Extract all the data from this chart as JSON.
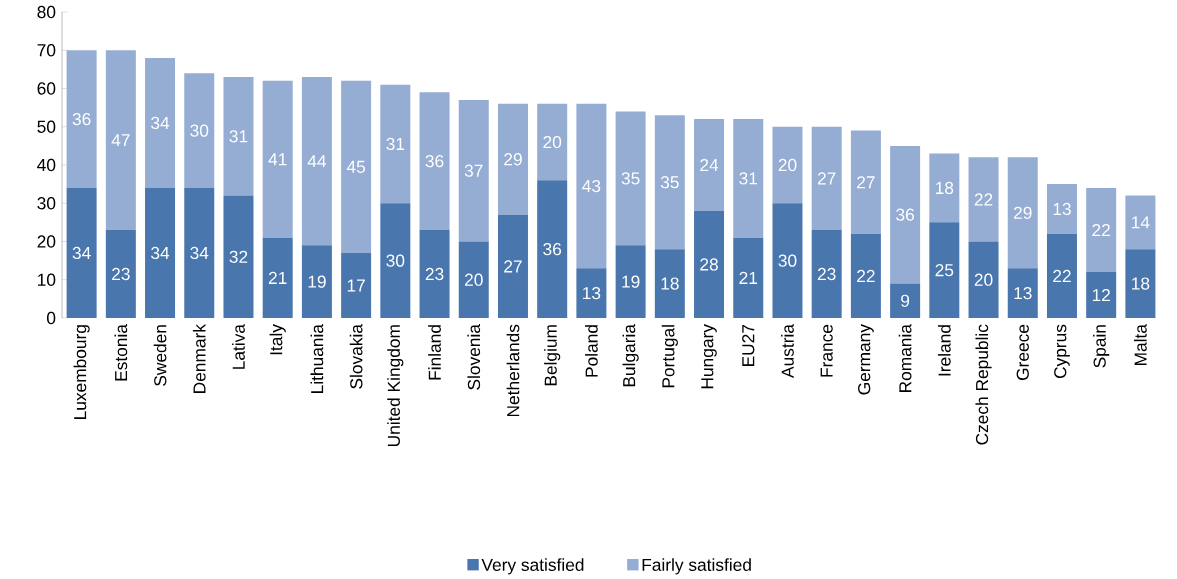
{
  "chart_data": {
    "type": "bar",
    "stacked": true,
    "data_labels": true,
    "legend": "bottom",
    "categories": [
      "Luxembourg",
      "Estonia",
      "Sweden",
      "Denmark",
      "Lativa",
      "Italy",
      "Lithuania",
      "Slovakia",
      "United Kingdom",
      "Finland",
      "Slovenia",
      "Netherlands",
      "Belgium",
      "Poland",
      "Bulgaria",
      "Portugal",
      "Hungary",
      "EU27",
      "Austria",
      "France",
      "Germany",
      "Romania",
      "Ireland",
      "Czech Republic",
      "Greece",
      "Cyprus",
      "Spain",
      "Malta"
    ],
    "series": [
      {
        "name": "Very satisfied",
        "color": "#4a76ae",
        "values": [
          34,
          23,
          34,
          34,
          32,
          21,
          19,
          17,
          30,
          23,
          20,
          27,
          36,
          13,
          19,
          18,
          28,
          21,
          30,
          23,
          22,
          9,
          25,
          20,
          13,
          22,
          12,
          18
        ]
      },
      {
        "name": "Fairly satisfied",
        "color": "#95acd3",
        "values": [
          36,
          47,
          34,
          30,
          31,
          41,
          44,
          45,
          31,
          36,
          37,
          29,
          20,
          43,
          35,
          35,
          24,
          31,
          20,
          27,
          27,
          36,
          18,
          22,
          29,
          13,
          22,
          14
        ]
      }
    ],
    "ylim": [
      0,
      80
    ],
    "yticks": [
      0,
      10,
      20,
      30,
      40,
      50,
      60,
      70,
      80
    ]
  }
}
